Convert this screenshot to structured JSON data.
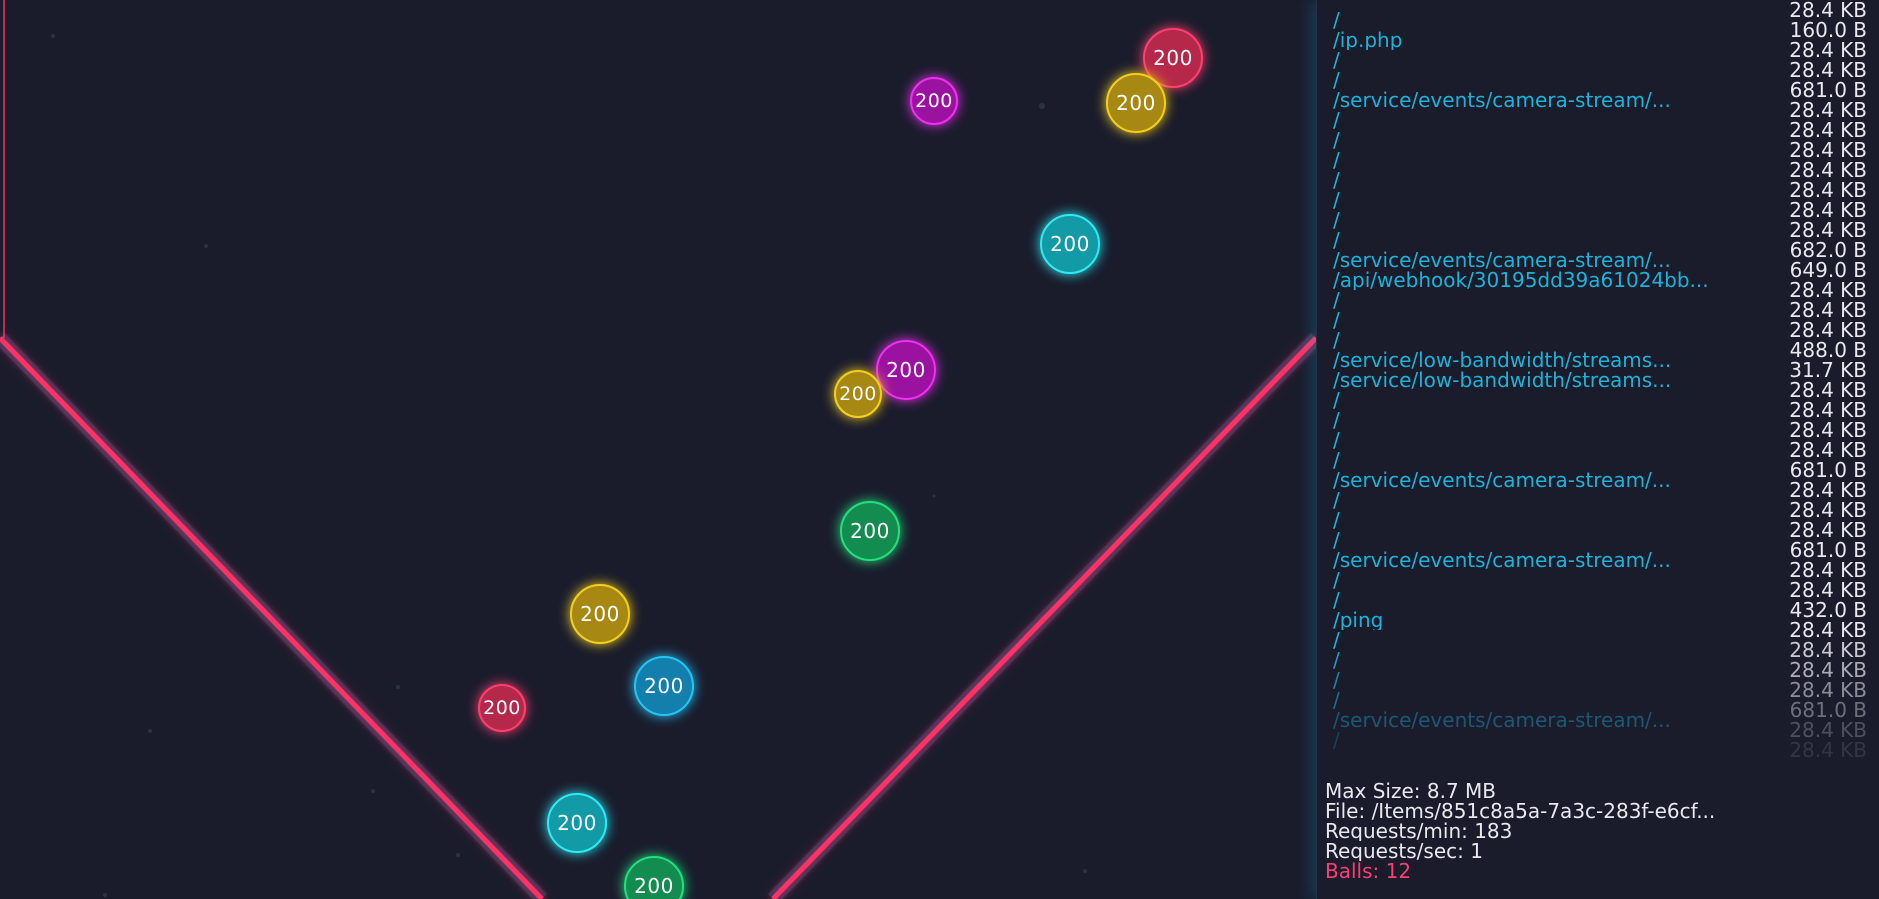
{
  "visualizer": {
    "ball_label": "200",
    "colors": {
      "red": "#d63255",
      "magenta": "#cc1fd0",
      "yellow": "#c9a015",
      "cyan": "#19b6c4",
      "blue": "#1597c8",
      "green": "#1aa860",
      "funnel_line": "#ff3366"
    },
    "balls": [
      {
        "label": "200",
        "color": "red"
      },
      {
        "label": "200",
        "color": "magenta"
      },
      {
        "label": "200",
        "color": "yellow"
      },
      {
        "label": "200",
        "color": "cyan"
      },
      {
        "label": "200",
        "color": "magenta"
      },
      {
        "label": "200",
        "color": "yellow"
      },
      {
        "label": "200",
        "color": "green"
      },
      {
        "label": "200",
        "color": "yellow"
      },
      {
        "label": "200",
        "color": "blue"
      },
      {
        "label": "200",
        "color": "red"
      },
      {
        "label": "200",
        "color": "cyan"
      },
      {
        "label": "200",
        "color": "green"
      }
    ]
  },
  "request_log": [
    {
      "path": "/",
      "size": "28.4 KB"
    },
    {
      "path": "/ip.php",
      "size": "160.0 B"
    },
    {
      "path": "/",
      "size": "28.4 KB"
    },
    {
      "path": "/",
      "size": "28.4 KB"
    },
    {
      "path": "/service/events/camera-stream/...",
      "size": "681.0 B"
    },
    {
      "path": "/",
      "size": "28.4 KB"
    },
    {
      "path": "/",
      "size": "28.4 KB"
    },
    {
      "path": "/",
      "size": "28.4 KB"
    },
    {
      "path": "/",
      "size": "28.4 KB"
    },
    {
      "path": "/",
      "size": "28.4 KB"
    },
    {
      "path": "/",
      "size": "28.4 KB"
    },
    {
      "path": "/",
      "size": "28.4 KB"
    },
    {
      "path": "/service/events/camera-stream/...",
      "size": "682.0 B"
    },
    {
      "path": "/api/webhook/30195dd39a61024bb...",
      "size": "649.0 B"
    },
    {
      "path": "/",
      "size": "28.4 KB"
    },
    {
      "path": "/",
      "size": "28.4 KB"
    },
    {
      "path": "/",
      "size": "28.4 KB"
    },
    {
      "path": "/service/low-bandwidth/streams...",
      "size": "488.0 B"
    },
    {
      "path": "/service/low-bandwidth/streams...",
      "size": "31.7 KB"
    },
    {
      "path": "/",
      "size": "28.4 KB"
    },
    {
      "path": "/",
      "size": "28.4 KB"
    },
    {
      "path": "/",
      "size": "28.4 KB"
    },
    {
      "path": "/",
      "size": "28.4 KB"
    },
    {
      "path": "/service/events/camera-stream/...",
      "size": "681.0 B"
    },
    {
      "path": "/",
      "size": "28.4 KB"
    },
    {
      "path": "/",
      "size": "28.4 KB"
    },
    {
      "path": "/",
      "size": "28.4 KB"
    },
    {
      "path": "/service/events/camera-stream/...",
      "size": "681.0 B"
    },
    {
      "path": "/",
      "size": "28.4 KB"
    },
    {
      "path": "/",
      "size": "28.4 KB"
    },
    {
      "path": "/ping",
      "size": "432.0 B"
    },
    {
      "path": "/",
      "size": "28.4 KB"
    },
    {
      "path": "/",
      "size": "28.4 KB"
    },
    {
      "path": "/",
      "size": "28.4 KB"
    },
    {
      "path": "/",
      "size": "28.4 KB"
    },
    {
      "path": "/service/events/camera-stream/...",
      "size": "681.0 B"
    },
    {
      "path": "/",
      "size": "28.4 KB"
    },
    {
      "path": "",
      "size": "28.4 KB"
    }
  ],
  "stats": {
    "max_size": "Max Size: 8.7 MB",
    "file": "File: /Items/851c8a5a-7a3c-283f-e6cf...",
    "requests_min": "Requests/min: 183",
    "requests_sec": "Requests/sec: 1",
    "balls": "Balls: 12"
  }
}
